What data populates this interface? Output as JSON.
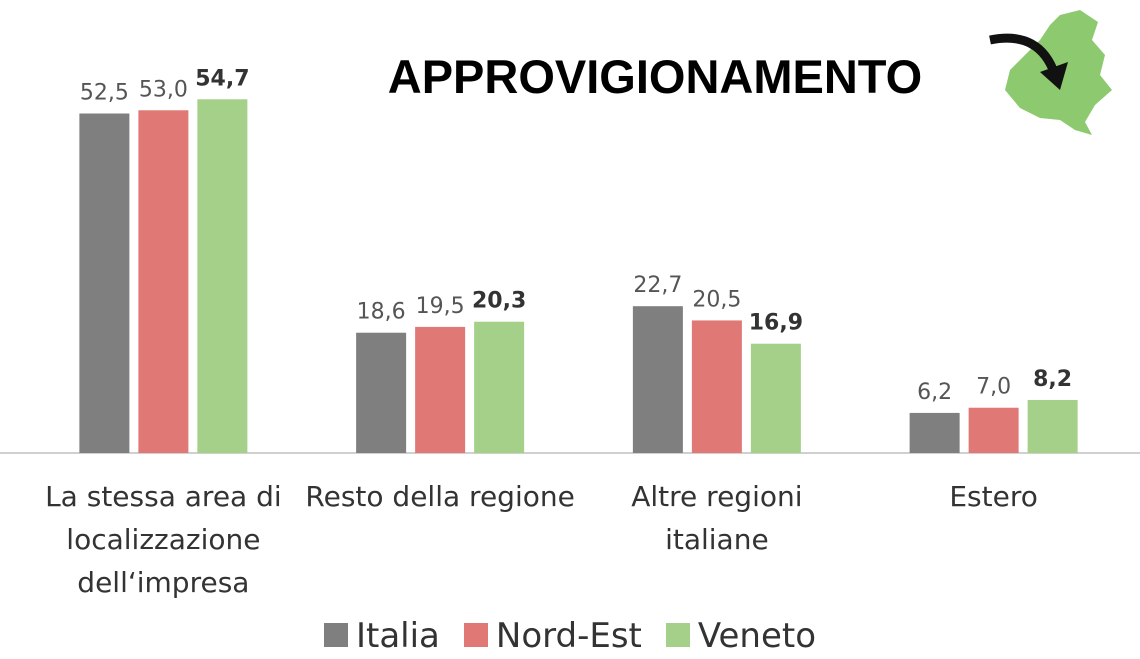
{
  "chart_data": {
    "type": "bar",
    "title": "APPROVIGIONAMENTO",
    "categories": [
      "La stessa area di localizzazione dell‘impresa",
      "Resto della regione",
      "Altre regioni italiane",
      "Estero"
    ],
    "series": [
      {
        "name": "Italia",
        "color": "#7f7f7f",
        "values": [
          52.5,
          18.6,
          22.7,
          6.2
        ],
        "value_labels": [
          "52,5",
          "18,6",
          "22,7",
          "6,2"
        ],
        "label_bold": false
      },
      {
        "name": "Nord-Est",
        "color": "#e07875",
        "values": [
          53.0,
          19.5,
          20.5,
          7.0
        ],
        "value_labels": [
          "53,0",
          "19,5",
          "20,5",
          "7,0"
        ],
        "label_bold": false
      },
      {
        "name": "Veneto",
        "color": "#a4d089",
        "values": [
          54.7,
          20.3,
          16.9,
          8.2
        ],
        "value_labels": [
          "54,7",
          "20,3",
          "16,9",
          "8,2"
        ],
        "label_bold": true
      }
    ],
    "ylim": [
      0,
      60
    ],
    "legend": "bottom"
  }
}
